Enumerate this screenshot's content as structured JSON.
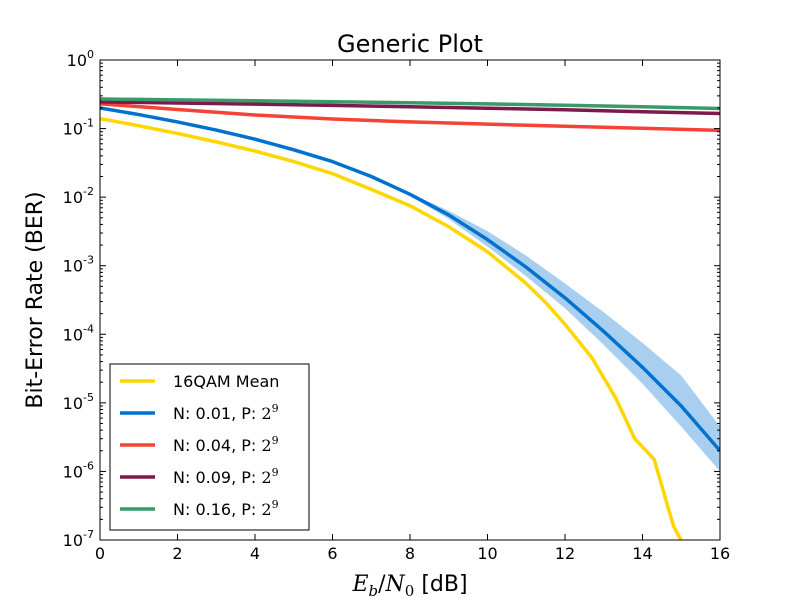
{
  "chart_data": {
    "type": "line",
    "title": "Generic Plot",
    "xlabel": {
      "math": "E",
      "sub1": "b",
      "slash": "/",
      "math2": "N",
      "sub2": "0",
      "unit": " [dB]"
    },
    "ylabel": "Bit-Error Rate (BER)",
    "xlim": [
      0,
      16
    ],
    "ylim": [
      1e-07,
      1
    ],
    "yscale": "log",
    "grid": false,
    "legend_position": "lower-left",
    "x_ticks": [
      "0",
      "2",
      "4",
      "6",
      "8",
      "10",
      "12",
      "14",
      "16"
    ],
    "y_ticks": [
      {
        "base": "10",
        "exp": "0"
      },
      {
        "base": "10",
        "exp": "-1"
      },
      {
        "base": "10",
        "exp": "-2"
      },
      {
        "base": "10",
        "exp": "-3"
      },
      {
        "base": "10",
        "exp": "-4"
      },
      {
        "base": "10",
        "exp": "-5"
      },
      {
        "base": "10",
        "exp": "-6"
      },
      {
        "base": "10",
        "exp": "-7"
      }
    ],
    "series": [
      {
        "name": "16QAM Mean",
        "legend": {
          "text": "16QAM Mean",
          "power_base": "",
          "power_exp": ""
        },
        "color": "#FFD700",
        "x": [
          0,
          1,
          2,
          3,
          4,
          5,
          6,
          7,
          8,
          9,
          10,
          11,
          11.5,
          12,
          12.7,
          13.3,
          13.8,
          14.3,
          14.8,
          15.2
        ],
        "y": [
          0.14,
          0.11,
          0.085,
          0.064,
          0.047,
          0.033,
          0.022,
          0.013,
          0.0075,
          0.0037,
          0.0016,
          0.00055,
          0.00029,
          0.00014,
          4.5e-05,
          1.2e-05,
          3e-06,
          1.5e-06,
          1.6e-07,
          6e-08
        ]
      },
      {
        "name": "N: 0.01, P: 2^9",
        "legend": {
          "text": "N: 0.01, P: ",
          "power_base": "2",
          "power_exp": "9"
        },
        "color": "#0072CE",
        "x": [
          0,
          1,
          2,
          3,
          4,
          5,
          6,
          7,
          8,
          9,
          10,
          11,
          12,
          13,
          14,
          15,
          16
        ],
        "y": [
          0.2,
          0.16,
          0.125,
          0.095,
          0.07,
          0.049,
          0.033,
          0.02,
          0.011,
          0.0055,
          0.0024,
          0.00095,
          0.00034,
          0.00011,
          3.3e-05,
          9e-06,
          2e-06
        ],
        "band_lower": [
          0.2,
          0.16,
          0.125,
          0.095,
          0.07,
          0.049,
          0.033,
          0.02,
          0.0105,
          0.0048,
          0.0019,
          0.0007,
          0.00024,
          7e-05,
          1.9e-05,
          4.5e-06,
          1e-06
        ],
        "band_upper": [
          0.2,
          0.16,
          0.125,
          0.095,
          0.07,
          0.049,
          0.033,
          0.02,
          0.0115,
          0.0063,
          0.0032,
          0.0014,
          0.00055,
          0.00021,
          7.5e-05,
          2.5e-05,
          4.5e-06
        ],
        "band_color": "#A9CFF0"
      },
      {
        "name": "N: 0.04, P: 2^9",
        "legend": {
          "text": "N: 0.04, P: ",
          "power_base": "2",
          "power_exp": "9"
        },
        "color": "#F44336",
        "x": [
          0,
          2,
          4,
          6,
          8,
          10,
          12,
          14,
          16
        ],
        "y": [
          0.23,
          0.19,
          0.158,
          0.138,
          0.125,
          0.116,
          0.108,
          0.101,
          0.094
        ]
      },
      {
        "name": "N: 0.09, P: 2^9",
        "legend": {
          "text": "N: 0.09, P: ",
          "power_base": "2",
          "power_exp": "9"
        },
        "color": "#7B1A4B",
        "x": [
          0,
          2,
          4,
          6,
          8,
          10,
          12,
          14,
          16
        ],
        "y": [
          0.245,
          0.236,
          0.227,
          0.218,
          0.208,
          0.198,
          0.188,
          0.176,
          0.166
        ]
      },
      {
        "name": "N: 0.16, P: 2^9",
        "legend": {
          "text": "N: 0.16, P: ",
          "power_base": "2",
          "power_exp": "9"
        },
        "color": "#3A9A6A",
        "x": [
          0,
          2,
          4,
          6,
          8,
          10,
          12,
          14,
          16
        ],
        "y": [
          0.27,
          0.262,
          0.254,
          0.246,
          0.238,
          0.229,
          0.219,
          0.208,
          0.196
        ]
      }
    ]
  }
}
